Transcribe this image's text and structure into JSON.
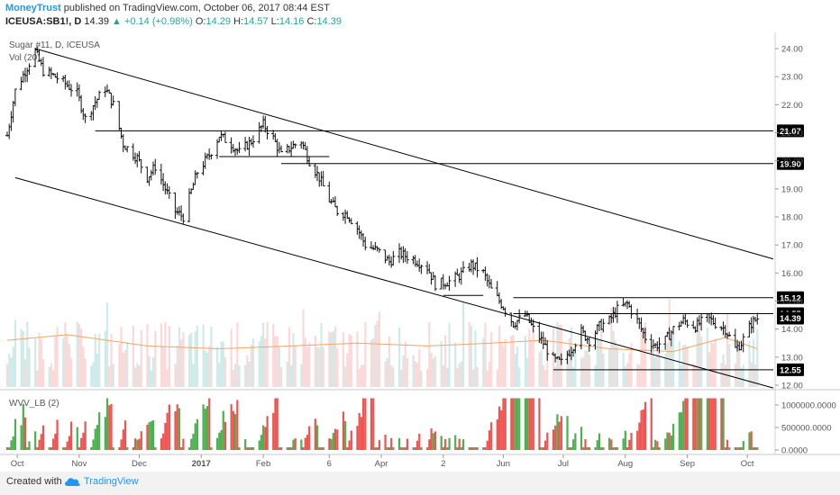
{
  "header": {
    "author": "MoneyTrust",
    "published": "published on TradingView.com, October 06, 2017 08:44 EST",
    "symbol": "ICEUSA:SB1!, D",
    "last": "14.39",
    "change": "▲ +0.14 (+0.98%)",
    "open_label": "O:",
    "open": "14.29",
    "high_label": "H:",
    "high": "14.57",
    "low_label": "L:",
    "low": "14.16",
    "close_label": "C:",
    "close": "14.39"
  },
  "footer": {
    "created_with": "Created with",
    "brand": "TradingView"
  },
  "colors": {
    "up": "#26a69a",
    "down": "#ef5350",
    "ma": "#f4a460",
    "line": "#000000",
    "accent": "#2196f3",
    "tag": "#000000"
  },
  "chart_data": [
    {
      "type": "line",
      "title": "Sugar #11, D, ICEUSA",
      "volume_label": "Vol (20)",
      "ylim": [
        12.0,
        24.2
      ],
      "y_ticks": [
        "24.00",
        "23.00",
        "22.00",
        "21.00",
        "20.00",
        "19.00",
        "18.00",
        "17.00",
        "16.00",
        "15.00",
        "14.00",
        "13.00",
        "12.00"
      ],
      "x_ticks": [
        "Oct",
        "Nov",
        "Dec",
        "2017",
        "Feb",
        "6",
        "Apr",
        "2",
        "Jun",
        "Jul",
        "Aug",
        "Sep",
        "Oct"
      ],
      "level_tags": [
        "21.07",
        "19.90",
        "15.12",
        "14.55",
        "14.39",
        "12.55"
      ],
      "close_path": [
        [
          "2016-09-26",
          20.9
        ],
        [
          "2016-09-30",
          22.5
        ],
        [
          "2016-10-05",
          23.2
        ],
        [
          "2016-10-10",
          23.9
        ],
        [
          "2016-10-14",
          23.2
        ],
        [
          "2016-10-20",
          23.0
        ],
        [
          "2016-10-26",
          22.7
        ],
        [
          "2016-10-31",
          22.4
        ],
        [
          "2016-11-04",
          21.5
        ],
        [
          "2016-11-09",
          22.1
        ],
        [
          "2016-11-14",
          22.6
        ],
        [
          "2016-11-18",
          22.0
        ],
        [
          "2016-11-23",
          20.6
        ],
        [
          "2016-11-30",
          20.1
        ],
        [
          "2016-12-05",
          19.4
        ],
        [
          "2016-12-09",
          19.8
        ],
        [
          "2016-12-14",
          19.0
        ],
        [
          "2016-12-19",
          18.2
        ],
        [
          "2016-12-23",
          18.0
        ],
        [
          "2016-12-30",
          19.6
        ],
        [
          "2017-01-05",
          20.2
        ],
        [
          "2017-01-10",
          20.9
        ],
        [
          "2017-01-16",
          20.6
        ],
        [
          "2017-01-20",
          20.3
        ],
        [
          "2017-01-26",
          20.7
        ],
        [
          "2017-02-01",
          21.3
        ],
        [
          "2017-02-06",
          20.8
        ],
        [
          "2017-02-10",
          20.2
        ],
        [
          "2017-02-15",
          20.5
        ],
        [
          "2017-02-20",
          20.7
        ],
        [
          "2017-02-24",
          20.0
        ],
        [
          "2017-03-01",
          19.4
        ],
        [
          "2017-03-06",
          18.6
        ],
        [
          "2017-03-10",
          18.2
        ],
        [
          "2017-03-15",
          18.1
        ],
        [
          "2017-03-20",
          17.6
        ],
        [
          "2017-03-24",
          17.0
        ],
        [
          "2017-03-30",
          16.8
        ],
        [
          "2017-04-05",
          16.4
        ],
        [
          "2017-04-10",
          16.7
        ],
        [
          "2017-04-17",
          16.5
        ],
        [
          "2017-04-24",
          16.2
        ],
        [
          "2017-04-28",
          15.6
        ],
        [
          "2017-05-05",
          15.7
        ],
        [
          "2017-05-10",
          15.9
        ],
        [
          "2017-05-16",
          16.3
        ],
        [
          "2017-05-22",
          16.0
        ],
        [
          "2017-05-26",
          15.4
        ],
        [
          "2017-06-01",
          14.8
        ],
        [
          "2017-06-06",
          14.2
        ],
        [
          "2017-06-12",
          14.5
        ],
        [
          "2017-06-16",
          14.0
        ],
        [
          "2017-06-21",
          13.5
        ],
        [
          "2017-06-26",
          12.9
        ],
        [
          "2017-06-30",
          12.8
        ],
        [
          "2017-07-05",
          13.3
        ],
        [
          "2017-07-10",
          13.9
        ],
        [
          "2017-07-14",
          13.6
        ],
        [
          "2017-07-19",
          14.1
        ],
        [
          "2017-07-24",
          14.3
        ],
        [
          "2017-07-28",
          14.7
        ],
        [
          "2017-08-02",
          14.9
        ],
        [
          "2017-08-07",
          14.3
        ],
        [
          "2017-08-11",
          13.7
        ],
        [
          "2017-08-16",
          13.4
        ],
        [
          "2017-08-21",
          13.6
        ],
        [
          "2017-08-25",
          14.0
        ],
        [
          "2017-08-30",
          14.3
        ],
        [
          "2017-09-05",
          14.1
        ],
        [
          "2017-09-11",
          14.4
        ],
        [
          "2017-09-15",
          14.2
        ],
        [
          "2017-09-20",
          14.0
        ],
        [
          "2017-09-25",
          13.3
        ],
        [
          "2017-09-28",
          13.5
        ],
        [
          "2017-10-03",
          14.2
        ],
        [
          "2017-10-06",
          14.39
        ]
      ],
      "ma_path": [
        [
          "2016-09-26",
          13.6
        ],
        [
          "2016-10-26",
          13.8
        ],
        [
          "2016-12-05",
          13.4
        ],
        [
          "2017-01-10",
          13.3
        ],
        [
          "2017-02-15",
          13.4
        ],
        [
          "2017-03-20",
          13.5
        ],
        [
          "2017-04-24",
          13.4
        ],
        [
          "2017-05-26",
          13.5
        ],
        [
          "2017-06-21",
          13.6
        ],
        [
          "2017-07-24",
          13.3
        ],
        [
          "2017-08-25",
          13.2
        ],
        [
          "2017-09-20",
          13.7
        ],
        [
          "2017-10-06",
          13.3
        ]
      ],
      "trend_lines": [
        {
          "name": "upper-channel",
          "from": [
            "2016-10-10",
            24.0
          ],
          "to": [
            "2017-10-14",
            16.5
          ]
        },
        {
          "name": "lower-channel",
          "from": [
            "2016-09-30",
            19.4
          ],
          "to": [
            "2017-10-14",
            11.9
          ]
        }
      ],
      "levels": [
        {
          "name": "level-21-07",
          "value": 21.07,
          "from": "2016-11-09",
          "to": "2017-10-14",
          "tag": "21.07"
        },
        {
          "name": "level-19-90",
          "value": 19.9,
          "from": "2017-02-10",
          "to": "2017-10-14",
          "tag": "19.90"
        },
        {
          "name": "level-15-12",
          "value": 15.12,
          "from": "2017-06-06",
          "to": "2017-10-14",
          "tag": "15.12"
        },
        {
          "name": "level-14-55",
          "value": 14.55,
          "from": "2017-06-06",
          "to": "2017-10-14",
          "tag": "14.55"
        },
        {
          "name": "level-12-55",
          "value": 12.55,
          "from": "2017-06-26",
          "to": "2017-10-14",
          "tag": "12.55"
        },
        {
          "name": "level-20-15",
          "value": 20.15,
          "from": "2017-01-10",
          "to": "2017-03-06",
          "tag": ""
        },
        {
          "name": "level-15-20",
          "value": 15.2,
          "from": "2017-05-02",
          "to": "2017-05-22",
          "tag": ""
        }
      ],
      "current_price_tag": "14.39",
      "date_range": [
        "2016-09-26",
        "2017-10-14"
      ]
    },
    {
      "type": "bar",
      "title": "WVV_LB (2)",
      "y_ticks": [
        "1000000.0000",
        "500000.0000",
        "0.0000"
      ],
      "ylim": [
        0,
        1200000
      ]
    }
  ]
}
